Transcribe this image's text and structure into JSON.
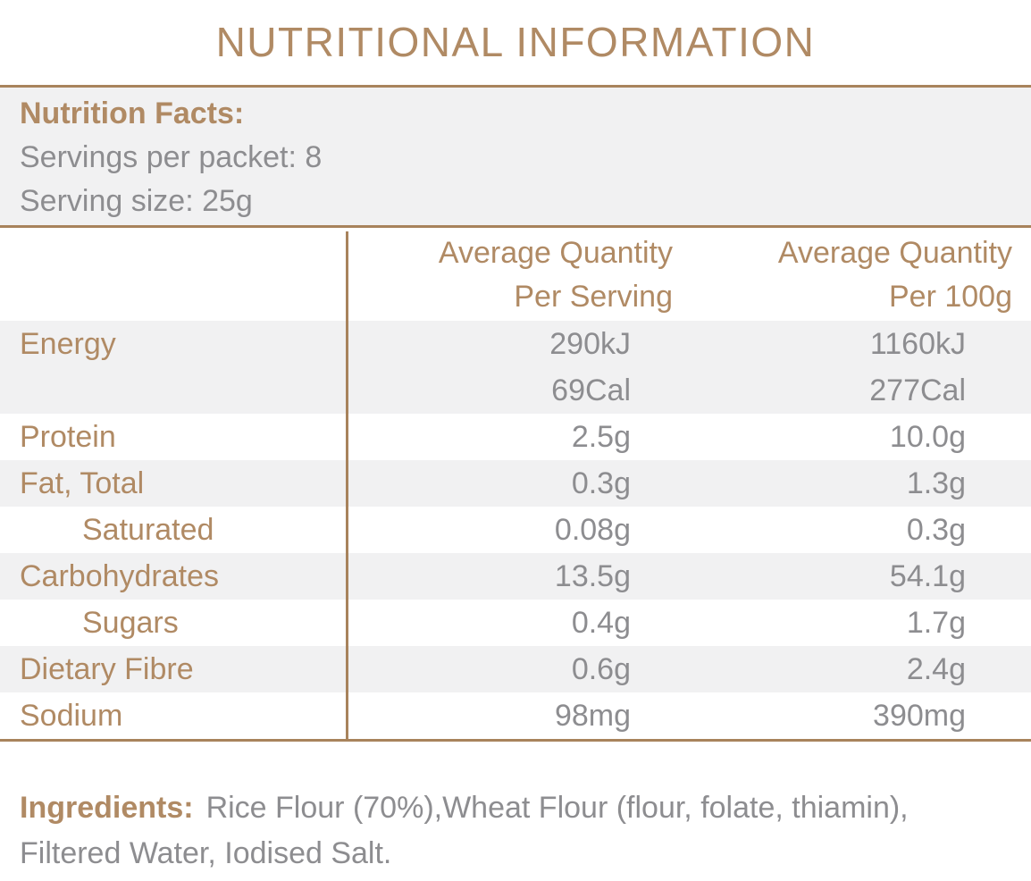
{
  "title": "NUTRITIONAL INFORMATION",
  "facts": {
    "heading": "Nutrition Facts:",
    "lines": [
      "Servings per packet: 8",
      "Serving size: 25g"
    ]
  },
  "table": {
    "header": {
      "per_serving": [
        "Average Quantity",
        "Per Serving"
      ],
      "per_100g": [
        "Average Quantity",
        "Per 100g"
      ]
    },
    "rows": [
      {
        "label": "Energy",
        "indent": false,
        "shaded": true,
        "per_serving": [
          "290kJ",
          "69Cal"
        ],
        "per_100g": [
          "1160kJ",
          "277Cal"
        ]
      },
      {
        "label": "Protein",
        "indent": false,
        "shaded": false,
        "per_serving": [
          "2.5g"
        ],
        "per_100g": [
          "10.0g"
        ]
      },
      {
        "label": "Fat, Total",
        "indent": false,
        "shaded": true,
        "per_serving": [
          "0.3g"
        ],
        "per_100g": [
          "1.3g"
        ]
      },
      {
        "label": "Saturated",
        "indent": true,
        "shaded": false,
        "per_serving": [
          "0.08g"
        ],
        "per_100g": [
          "0.3g"
        ]
      },
      {
        "label": "Carbohydrates",
        "indent": false,
        "shaded": true,
        "per_serving": [
          "13.5g"
        ],
        "per_100g": [
          "54.1g"
        ]
      },
      {
        "label": "Sugars",
        "indent": true,
        "shaded": false,
        "per_serving": [
          "0.4g"
        ],
        "per_100g": [
          "1.7g"
        ]
      },
      {
        "label": "Dietary Fibre",
        "indent": false,
        "shaded": true,
        "per_serving": [
          "0.6g"
        ],
        "per_100g": [
          "2.4g"
        ]
      },
      {
        "label": "Sodium",
        "indent": false,
        "shaded": false,
        "per_serving": [
          "98mg"
        ],
        "per_100g": [
          "390mg"
        ]
      }
    ]
  },
  "ingredients": {
    "label": "Ingredients:",
    "line1": "Rice Flour (70%),Wheat Flour (flour, folate, thiamin),",
    "line2": "Filtered Water, Iodised Salt."
  },
  "colors": {
    "brown_text": "#b08a64",
    "line_brown": "#a8835c",
    "gray_text": "#8d8d90",
    "shaded_row_bg": "#f1f1f2"
  }
}
